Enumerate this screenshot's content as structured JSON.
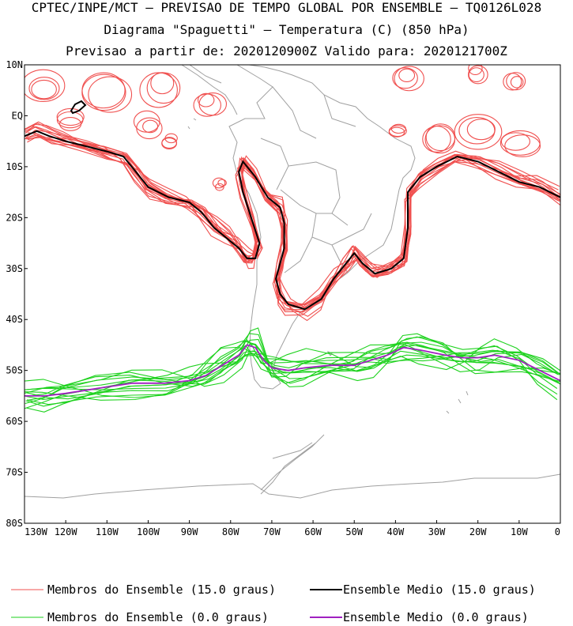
{
  "header": {
    "line1": "CPTEC/INPE/MCT – PREVISAO DE TEMPO GLOBAL POR ENSEMBLE – TQ0126L028",
    "line2": "Diagrama \"Spaguetti\" – Temperatura (C) (850 hPa)",
    "line3": "Previsao a partir de: 2020120900Z  Valido para: 2020121700Z"
  },
  "map": {
    "lat_labels": [
      "10N",
      "EQ",
      "10S",
      "20S",
      "30S",
      "40S",
      "50S",
      "60S",
      "70S",
      "80S"
    ],
    "lon_labels": [
      "130W",
      "120W",
      "110W",
      "100W",
      "90W",
      "80W",
      "70W",
      "60W",
      "50W",
      "40W",
      "30W",
      "20W",
      "10W",
      "0"
    ],
    "lon_range": [
      -130,
      0
    ],
    "lat_range": [
      -80,
      10
    ],
    "colors": {
      "member_15": "#f0504f",
      "mean_15": "#000000",
      "member_0": "#1ed21e",
      "mean_0": "#a020c0",
      "coast": "#a0a0a0"
    },
    "mean_15_path": [
      [
        -130,
        -4
      ],
      [
        -127,
        -3
      ],
      [
        -124,
        -4
      ],
      [
        -120,
        -5
      ],
      [
        -115,
        -6
      ],
      [
        -110,
        -7
      ],
      [
        -106,
        -8
      ],
      [
        -103,
        -11
      ],
      [
        -100,
        -14
      ],
      [
        -95,
        -16
      ],
      [
        -90,
        -17
      ],
      [
        -87,
        -19
      ],
      [
        -84,
        -22
      ],
      [
        -81,
        -24
      ],
      [
        -78,
        -26
      ],
      [
        -76,
        -28
      ],
      [
        -74,
        -28
      ],
      [
        -73,
        -25
      ],
      [
        -75,
        -20
      ],
      [
        -77,
        -15
      ],
      [
        -78,
        -11
      ],
      [
        -77,
        -9
      ],
      [
        -74,
        -12
      ],
      [
        -71,
        -16
      ],
      [
        -68,
        -18
      ],
      [
        -67,
        -21
      ],
      [
        -67,
        -26
      ],
      [
        -68,
        -29
      ],
      [
        -69,
        -32
      ],
      [
        -68,
        -35
      ],
      [
        -66,
        -37
      ],
      [
        -62,
        -38
      ],
      [
        -58,
        -36
      ],
      [
        -55,
        -32
      ],
      [
        -52,
        -29
      ],
      [
        -50,
        -27
      ],
      [
        -48,
        -29
      ],
      [
        -45,
        -31
      ],
      [
        -41,
        -30
      ],
      [
        -38,
        -28
      ],
      [
        -37,
        -22
      ],
      [
        -37,
        -15
      ],
      [
        -34,
        -12
      ],
      [
        -30,
        -10
      ],
      [
        -25,
        -8
      ],
      [
        -20,
        -9
      ],
      [
        -15,
        -11
      ],
      [
        -10,
        -13
      ],
      [
        -5,
        -14
      ],
      [
        0,
        -16
      ]
    ],
    "mean_0_path": [
      [
        -130,
        -55
      ],
      [
        -125,
        -55
      ],
      [
        -120,
        -54.5
      ],
      [
        -112,
        -53.5
      ],
      [
        -104,
        -52.5
      ],
      [
        -96,
        -52.5
      ],
      [
        -90,
        -52
      ],
      [
        -86,
        -51
      ],
      [
        -82,
        -49
      ],
      [
        -78,
        -47
      ],
      [
        -76,
        -45
      ],
      [
        -74,
        -45.5
      ],
      [
        -72,
        -48
      ],
      [
        -70,
        -49.5
      ],
      [
        -66,
        -50
      ],
      [
        -62,
        -49.5
      ],
      [
        -56,
        -49
      ],
      [
        -50,
        -49
      ],
      [
        -46,
        -48
      ],
      [
        -42,
        -47
      ],
      [
        -38,
        -45.5
      ],
      [
        -34,
        -46
      ],
      [
        -28,
        -47
      ],
      [
        -24,
        -47.5
      ],
      [
        -20,
        -47.5
      ],
      [
        -16,
        -47
      ],
      [
        -10,
        -48
      ],
      [
        -5,
        -50
      ],
      [
        0,
        -52
      ]
    ]
  },
  "legend": {
    "member_15_label": "Membros do Ensemble (15.0 graus)",
    "mean_15_label": "Ensemble Medio (15.0 graus)",
    "member_0_label": "Membros do Ensemble (0.0 graus)",
    "mean_0_label": "Ensemble Medio (0.0 graus)"
  }
}
